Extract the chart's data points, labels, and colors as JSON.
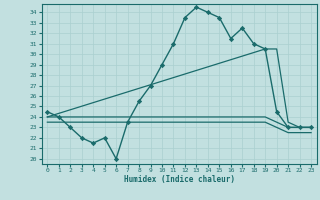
{
  "xlabel": "Humidex (Indice chaleur)",
  "bg_color": "#c2e0e0",
  "grid_color": "#aad0d0",
  "line_color": "#1a6b6b",
  "xlim": [
    -0.5,
    23.5
  ],
  "ylim": [
    19.5,
    34.8
  ],
  "yticks": [
    20,
    21,
    22,
    23,
    24,
    25,
    26,
    27,
    28,
    29,
    30,
    31,
    32,
    33,
    34
  ],
  "xticks": [
    0,
    1,
    2,
    3,
    4,
    5,
    6,
    7,
    8,
    9,
    10,
    11,
    12,
    13,
    14,
    15,
    16,
    17,
    18,
    19,
    20,
    21,
    22,
    23
  ],
  "series": [
    {
      "x": [
        0,
        1,
        2,
        3,
        4,
        5,
        6,
        7,
        8,
        9,
        10,
        11,
        12,
        13,
        14,
        15,
        16,
        17,
        18,
        19,
        20,
        21,
        22,
        23
      ],
      "y": [
        24.5,
        24.0,
        23.0,
        22.0,
        21.5,
        22.0,
        20.0,
        23.5,
        25.5,
        27.0,
        29.0,
        31.0,
        33.5,
        34.5,
        34.0,
        33.5,
        31.5,
        32.5,
        31.0,
        30.5,
        24.5,
        23.0,
        23.0,
        23.0
      ],
      "marker": "D",
      "markersize": 2.2,
      "linewidth": 1.0
    },
    {
      "x": [
        0,
        19,
        20,
        21,
        22,
        23
      ],
      "y": [
        24.0,
        30.5,
        30.5,
        23.5,
        23.0,
        23.0
      ],
      "marker": null,
      "markersize": 0,
      "linewidth": 0.9
    },
    {
      "x": [
        0,
        19,
        20,
        21,
        22,
        23
      ],
      "y": [
        24.0,
        24.0,
        23.5,
        23.0,
        23.0,
        23.0
      ],
      "marker": null,
      "markersize": 0,
      "linewidth": 0.9
    },
    {
      "x": [
        0,
        19,
        20,
        21,
        22,
        23
      ],
      "y": [
        23.5,
        23.5,
        23.0,
        22.5,
        22.5,
        22.5
      ],
      "marker": null,
      "markersize": 0,
      "linewidth": 0.9
    }
  ]
}
